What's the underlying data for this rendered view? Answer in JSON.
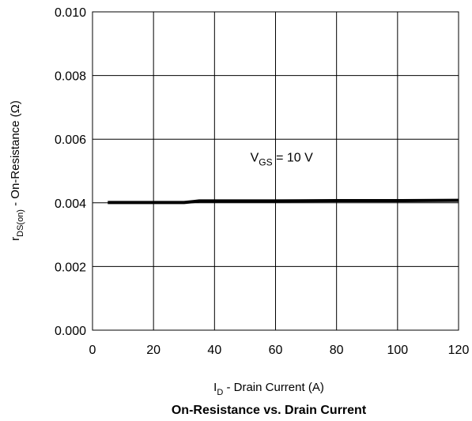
{
  "chart_data": {
    "type": "line",
    "title": "On-Resistance vs. Drain Current",
    "xlabel": {
      "main": "I",
      "sub": "D",
      "rest": " - Drain Current (A)"
    },
    "ylabel": {
      "main": "r",
      "sub": "DS(on)",
      "rest": " - On-Resistance (Ω)"
    },
    "xlim": [
      0,
      120
    ],
    "ylim": [
      0,
      0.01
    ],
    "xticks": [
      0,
      20,
      40,
      60,
      80,
      100,
      120
    ],
    "xtick_labels": [
      "0",
      "20",
      "40",
      "60",
      "80",
      "100",
      "120"
    ],
    "yticks": [
      0,
      0.002,
      0.004,
      0.006,
      0.008,
      0.01
    ],
    "ytick_labels": [
      "0.000",
      "0.002",
      "0.004",
      "0.006",
      "0.008",
      "0.010"
    ],
    "grid": true,
    "series": [
      {
        "x": [
          5,
          10,
          20,
          30,
          33,
          35,
          40,
          60,
          80,
          100,
          120
        ],
        "y": [
          0.00401,
          0.00401,
          0.00401,
          0.00401,
          0.00404,
          0.00406,
          0.00406,
          0.00406,
          0.00407,
          0.00407,
          0.00408
        ]
      }
    ],
    "annotation": {
      "main": "V",
      "sub": "GS",
      "rest": " = 10 V",
      "x": 62,
      "y": 0.0053
    }
  }
}
